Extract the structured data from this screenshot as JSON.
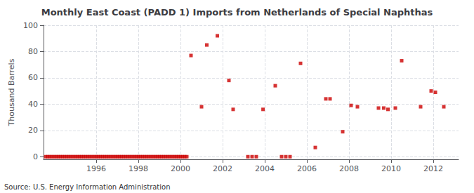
{
  "chart_data": {
    "type": "scatter",
    "title": "Monthly East Coast (PADD 1) Imports from Netherlands of Special Naphthas",
    "ylabel": "Thousand Barrels",
    "annotations": [
      "Source: U.S. Energy Information Administration"
    ],
    "color": "#cc0000",
    "marker": "square",
    "grid": true,
    "xlim": [
      1993.5,
      2013.2
    ],
    "ylim": [
      -2,
      100
    ],
    "xticks": [
      1996,
      1998,
      2000,
      2002,
      2004,
      2006,
      2008,
      2010,
      2012
    ],
    "yticks": [
      0,
      20,
      40,
      60,
      80,
      100
    ],
    "x": [
      1993.6,
      1993.7,
      1993.8,
      1993.9,
      1994.0,
      1994.1,
      1994.2,
      1994.3,
      1994.4,
      1994.5,
      1994.6,
      1994.7,
      1994.8,
      1994.9,
      1995.0,
      1995.1,
      1995.2,
      1995.3,
      1995.4,
      1995.5,
      1995.6,
      1995.7,
      1995.8,
      1995.9,
      1996.0,
      1996.1,
      1996.2,
      1996.3,
      1996.4,
      1996.5,
      1996.6,
      1996.7,
      1996.8,
      1996.9,
      1997.0,
      1997.1,
      1997.2,
      1997.3,
      1997.4,
      1997.5,
      1997.6,
      1997.7,
      1997.8,
      1997.9,
      1998.0,
      1998.1,
      1998.2,
      1998.3,
      1998.4,
      1998.5,
      1998.6,
      1998.7,
      1998.8,
      1998.9,
      1999.0,
      1999.1,
      1999.2,
      1999.3,
      1999.4,
      1999.5,
      1999.6,
      1999.7,
      1999.8,
      1999.9,
      2000.0,
      2000.1,
      2000.2,
      2000.3,
      2000.5,
      2001.0,
      2001.25,
      2001.75,
      2002.3,
      2002.5,
      2003.2,
      2003.4,
      2003.6,
      2003.92,
      2004.5,
      2004.8,
      2005.0,
      2005.2,
      2005.7,
      2006.4,
      2006.9,
      2007.1,
      2007.7,
      2008.1,
      2008.4,
      2009.4,
      2009.65,
      2009.85,
      2010.2,
      2010.5,
      2011.4,
      2011.9,
      2012.1,
      2012.5
    ],
    "values": [
      0,
      0,
      0,
      0,
      0,
      0,
      0,
      0,
      0,
      0,
      0,
      0,
      0,
      0,
      0,
      0,
      0,
      0,
      0,
      0,
      0,
      0,
      0,
      0,
      0,
      0,
      0,
      0,
      0,
      0,
      0,
      0,
      0,
      0,
      0,
      0,
      0,
      0,
      0,
      0,
      0,
      0,
      0,
      0,
      0,
      0,
      0,
      0,
      0,
      0,
      0,
      0,
      0,
      0,
      0,
      0,
      0,
      0,
      0,
      0,
      0,
      0,
      0,
      0,
      0,
      0,
      0,
      0,
      77,
      38,
      85,
      92,
      58,
      36,
      0,
      0,
      0,
      36,
      54,
      0,
      0,
      0,
      71,
      7,
      44,
      44,
      19,
      39,
      38,
      37,
      37,
      36,
      37,
      73,
      38,
      50,
      49,
      38
    ]
  }
}
